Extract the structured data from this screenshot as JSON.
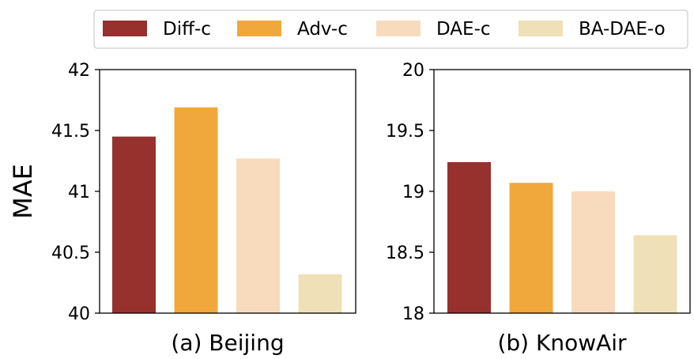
{
  "legend": [
    {
      "label": "Diff-c",
      "color": "#96312d"
    },
    {
      "label": "Adv-c",
      "color": "#f0a83c"
    },
    {
      "label": "DAE-c",
      "color": "#f8dbbd"
    },
    {
      "label": "BA-DAE-o",
      "color": "#f0e0b8"
    }
  ],
  "chart_data": [
    {
      "type": "bar",
      "title": "(a) Beijing",
      "xlabel": "(a) Beijing",
      "ylabel": "MAE",
      "categories": [
        "Diff-c",
        "Adv-c",
        "DAE-c",
        "BA-DAE-o"
      ],
      "values": [
        41.45,
        41.69,
        41.27,
        40.32
      ],
      "ylim": [
        40,
        42
      ],
      "yticks": [
        40,
        40.5,
        41,
        41.5,
        42
      ],
      "ytick_labels": [
        "40",
        "40.5",
        "41",
        "41.5",
        "42"
      ],
      "grid": false
    },
    {
      "type": "bar",
      "title": "(b) KnowAir",
      "xlabel": "(b) KnowAir",
      "ylabel": "",
      "categories": [
        "Diff-c",
        "Adv-c",
        "DAE-c",
        "BA-DAE-o"
      ],
      "values": [
        19.24,
        19.07,
        19.0,
        18.64
      ],
      "ylim": [
        18,
        20
      ],
      "yticks": [
        18,
        18.5,
        19,
        19.5,
        20
      ],
      "ytick_labels": [
        "18",
        "18.5",
        "19",
        "19.5",
        "20"
      ],
      "grid": false
    }
  ]
}
